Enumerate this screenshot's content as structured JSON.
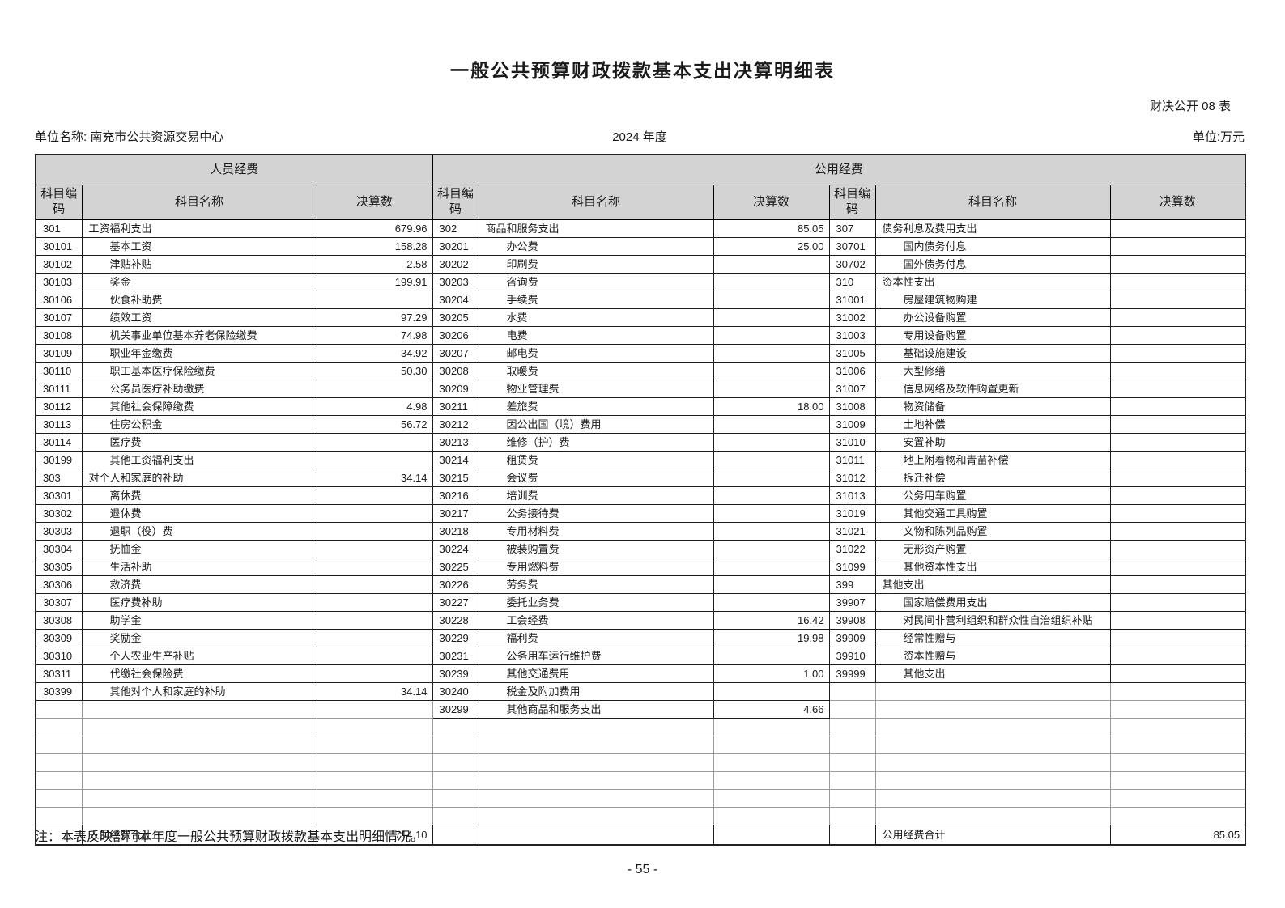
{
  "title": "一般公共预算财政拨款基本支出决算明细表",
  "doc_label": "财决公开 08 表",
  "meta": {
    "unit_name_line": "单位名称: 南充市公共资源交易中心",
    "year": "2024 年度",
    "unit_label": "单位:万元"
  },
  "colors": {
    "header_bg": "#d3d3d3",
    "border_dark": "#1c1c1c",
    "border_light": "#9a9a9a"
  },
  "table": {
    "group_headers": [
      "人员经费",
      "公用经费"
    ],
    "col_headers": [
      "科目编码",
      "科目名称",
      "决算数"
    ],
    "rows": [
      [
        {
          "c": "301",
          "n": "工资福利支出",
          "v": "679.96",
          "i": 0
        },
        {
          "c": "302",
          "n": "商品和服务支出",
          "v": "85.05",
          "i": 0
        },
        {
          "c": "307",
          "n": "债务利息及费用支出",
          "v": "",
          "i": 0
        }
      ],
      [
        {
          "c": "30101",
          "n": "基本工资",
          "v": "158.28",
          "i": 1
        },
        {
          "c": "30201",
          "n": "办公费",
          "v": "25.00",
          "i": 1
        },
        {
          "c": "30701",
          "n": "国内债务付息",
          "v": "",
          "i": 1
        }
      ],
      [
        {
          "c": "30102",
          "n": "津贴补贴",
          "v": "2.58",
          "i": 1
        },
        {
          "c": "30202",
          "n": "印刷费",
          "v": "",
          "i": 1
        },
        {
          "c": "30702",
          "n": "国外债务付息",
          "v": "",
          "i": 1
        }
      ],
      [
        {
          "c": "30103",
          "n": "奖金",
          "v": "199.91",
          "i": 1
        },
        {
          "c": "30203",
          "n": "咨询费",
          "v": "",
          "i": 1
        },
        {
          "c": "310",
          "n": "资本性支出",
          "v": "",
          "i": 0
        }
      ],
      [
        {
          "c": "30106",
          "n": "伙食补助费",
          "v": "",
          "i": 1
        },
        {
          "c": "30204",
          "n": "手续费",
          "v": "",
          "i": 1
        },
        {
          "c": "31001",
          "n": "房屋建筑物购建",
          "v": "",
          "i": 1
        }
      ],
      [
        {
          "c": "30107",
          "n": "绩效工资",
          "v": "97.29",
          "i": 1
        },
        {
          "c": "30205",
          "n": "水费",
          "v": "",
          "i": 1
        },
        {
          "c": "31002",
          "n": "办公设备购置",
          "v": "",
          "i": 1
        }
      ],
      [
        {
          "c": "30108",
          "n": "机关事业单位基本养老保险缴费",
          "v": "74.98",
          "i": 1
        },
        {
          "c": "30206",
          "n": "电费",
          "v": "",
          "i": 1
        },
        {
          "c": "31003",
          "n": "专用设备购置",
          "v": "",
          "i": 1
        }
      ],
      [
        {
          "c": "30109",
          "n": "职业年金缴费",
          "v": "34.92",
          "i": 1
        },
        {
          "c": "30207",
          "n": "邮电费",
          "v": "",
          "i": 1
        },
        {
          "c": "31005",
          "n": "基础设施建设",
          "v": "",
          "i": 1
        }
      ],
      [
        {
          "c": "30110",
          "n": "职工基本医疗保险缴费",
          "v": "50.30",
          "i": 1
        },
        {
          "c": "30208",
          "n": "取暖费",
          "v": "",
          "i": 1
        },
        {
          "c": "31006",
          "n": "大型修缮",
          "v": "",
          "i": 1
        }
      ],
      [
        {
          "c": "30111",
          "n": "公务员医疗补助缴费",
          "v": "",
          "i": 1
        },
        {
          "c": "30209",
          "n": "物业管理费",
          "v": "",
          "i": 1
        },
        {
          "c": "31007",
          "n": "信息网络及软件购置更新",
          "v": "",
          "i": 1
        }
      ],
      [
        {
          "c": "30112",
          "n": "其他社会保障缴费",
          "v": "4.98",
          "i": 1
        },
        {
          "c": "30211",
          "n": "差旅费",
          "v": "18.00",
          "i": 1
        },
        {
          "c": "31008",
          "n": "物资储备",
          "v": "",
          "i": 1
        }
      ],
      [
        {
          "c": "30113",
          "n": "住房公积金",
          "v": "56.72",
          "i": 1
        },
        {
          "c": "30212",
          "n": "因公出国（境）费用",
          "v": "",
          "i": 1
        },
        {
          "c": "31009",
          "n": "土地补偿",
          "v": "",
          "i": 1
        }
      ],
      [
        {
          "c": "30114",
          "n": "医疗费",
          "v": "",
          "i": 1
        },
        {
          "c": "30213",
          "n": "维修（护）费",
          "v": "",
          "i": 1
        },
        {
          "c": "31010",
          "n": "安置补助",
          "v": "",
          "i": 1
        }
      ],
      [
        {
          "c": "30199",
          "n": "其他工资福利支出",
          "v": "",
          "i": 1
        },
        {
          "c": "30214",
          "n": "租赁费",
          "v": "",
          "i": 1
        },
        {
          "c": "31011",
          "n": "地上附着物和青苗补偿",
          "v": "",
          "i": 1
        }
      ],
      [
        {
          "c": "303",
          "n": "对个人和家庭的补助",
          "v": "34.14",
          "i": 0
        },
        {
          "c": "30215",
          "n": "会议费",
          "v": "",
          "i": 1
        },
        {
          "c": "31012",
          "n": "拆迁补偿",
          "v": "",
          "i": 1
        }
      ],
      [
        {
          "c": "30301",
          "n": "离休费",
          "v": "",
          "i": 1
        },
        {
          "c": "30216",
          "n": "培训费",
          "v": "",
          "i": 1
        },
        {
          "c": "31013",
          "n": "公务用车购置",
          "v": "",
          "i": 1
        }
      ],
      [
        {
          "c": "30302",
          "n": "退休费",
          "v": "",
          "i": 1
        },
        {
          "c": "30217",
          "n": "公务接待费",
          "v": "",
          "i": 1
        },
        {
          "c": "31019",
          "n": "其他交通工具购置",
          "v": "",
          "i": 1
        }
      ],
      [
        {
          "c": "30303",
          "n": "退职（役）费",
          "v": "",
          "i": 1
        },
        {
          "c": "30218",
          "n": "专用材料费",
          "v": "",
          "i": 1
        },
        {
          "c": "31021",
          "n": "文物和陈列品购置",
          "v": "",
          "i": 1
        }
      ],
      [
        {
          "c": "30304",
          "n": "抚恤金",
          "v": "",
          "i": 1
        },
        {
          "c": "30224",
          "n": "被装购置费",
          "v": "",
          "i": 1
        },
        {
          "c": "31022",
          "n": "无形资产购置",
          "v": "",
          "i": 1
        }
      ],
      [
        {
          "c": "30305",
          "n": "生活补助",
          "v": "",
          "i": 1
        },
        {
          "c": "30225",
          "n": "专用燃料费",
          "v": "",
          "i": 1
        },
        {
          "c": "31099",
          "n": "其他资本性支出",
          "v": "",
          "i": 1
        }
      ],
      [
        {
          "c": "30306",
          "n": "救济费",
          "v": "",
          "i": 1
        },
        {
          "c": "30226",
          "n": "劳务费",
          "v": "",
          "i": 1
        },
        {
          "c": "399",
          "n": "其他支出",
          "v": "",
          "i": 0
        }
      ],
      [
        {
          "c": "30307",
          "n": "医疗费补助",
          "v": "",
          "i": 1
        },
        {
          "c": "30227",
          "n": "委托业务费",
          "v": "",
          "i": 1
        },
        {
          "c": "39907",
          "n": "国家赔偿费用支出",
          "v": "",
          "i": 1
        }
      ],
      [
        {
          "c": "30308",
          "n": "助学金",
          "v": "",
          "i": 1
        },
        {
          "c": "30228",
          "n": "工会经费",
          "v": "16.42",
          "i": 1
        },
        {
          "c": "39908",
          "n": "对民间非营利组织和群众性自治组织补贴",
          "v": "",
          "i": 1
        }
      ],
      [
        {
          "c": "30309",
          "n": "奖励金",
          "v": "",
          "i": 1
        },
        {
          "c": "30229",
          "n": "福利费",
          "v": "19.98",
          "i": 1
        },
        {
          "c": "39909",
          "n": "经常性赠与",
          "v": "",
          "i": 1
        }
      ],
      [
        {
          "c": "30310",
          "n": "个人农业生产补贴",
          "v": "",
          "i": 1
        },
        {
          "c": "30231",
          "n": "公务用车运行维护费",
          "v": "",
          "i": 1
        },
        {
          "c": "39910",
          "n": "资本性赠与",
          "v": "",
          "i": 1
        }
      ],
      [
        {
          "c": "30311",
          "n": "代缴社会保险费",
          "v": "",
          "i": 1
        },
        {
          "c": "30239",
          "n": "其他交通费用",
          "v": "1.00",
          "i": 1
        },
        {
          "c": "39999",
          "n": "其他支出",
          "v": "",
          "i": 1
        }
      ],
      [
        {
          "c": "30399",
          "n": "其他对个人和家庭的补助",
          "v": "34.14",
          "i": 1
        },
        {
          "c": "30240",
          "n": "税金及附加费用",
          "v": "",
          "i": 1
        },
        null
      ],
      [
        null,
        {
          "c": "30299",
          "n": "其他商品和服务支出",
          "v": "4.66",
          "i": 1
        },
        null
      ],
      [
        null,
        null,
        null
      ],
      [
        null,
        null,
        null
      ],
      [
        null,
        null,
        null
      ],
      [
        null,
        null,
        null
      ],
      [
        null,
        null,
        null
      ],
      [
        null,
        null,
        null
      ]
    ],
    "totals": {
      "left_label": "人员经费合计",
      "left_value": "714.10",
      "right_label": "公用经费合计",
      "right_value": "85.05"
    }
  },
  "note": "注：本表反映部门本年度一般公共预算财政拨款基本支出明细情况。",
  "page_number": "- 55 -"
}
